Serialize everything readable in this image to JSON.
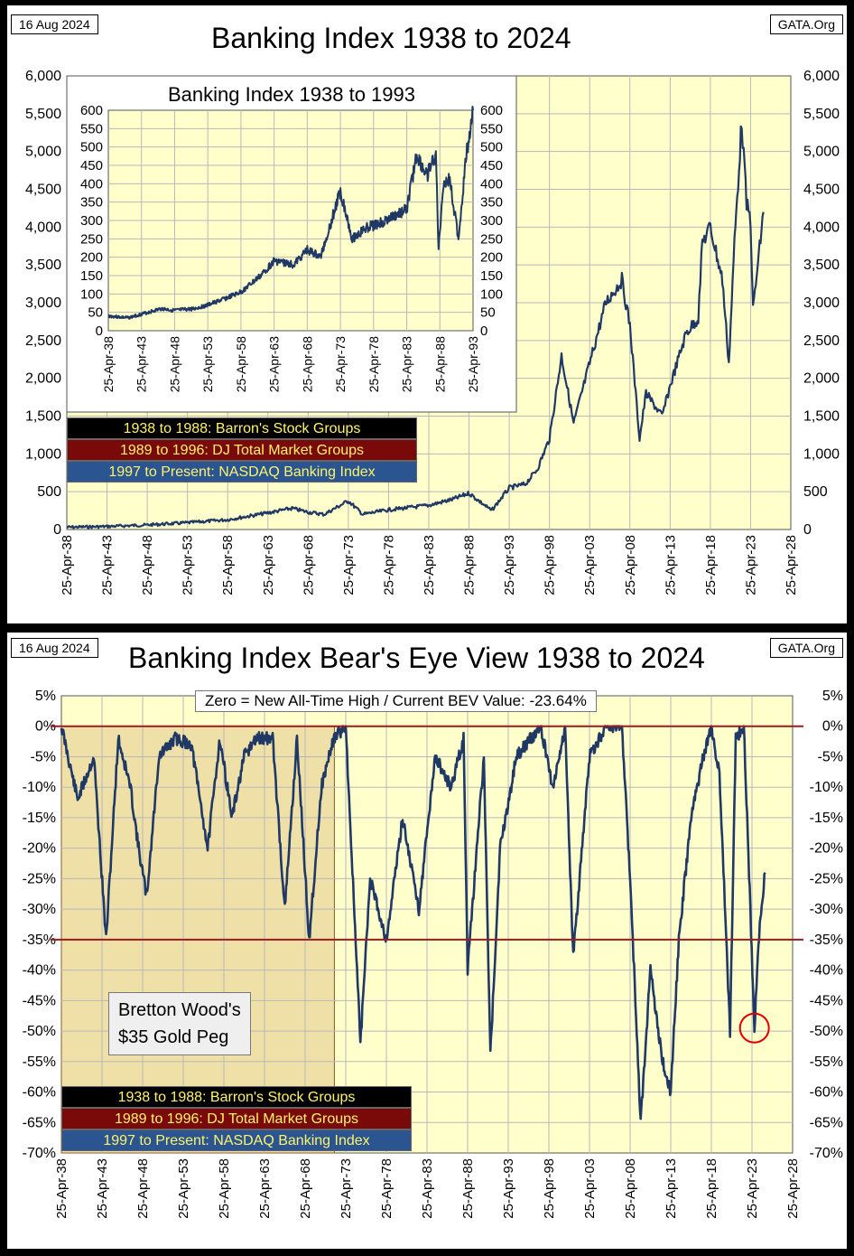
{
  "top": {
    "date": "16 Aug 2024",
    "source": "GATA.Org",
    "title": "Banking Index 1938 to 2024",
    "inset_title": "Banking Index 1938 to 1993",
    "legend": [
      {
        "text": "1938 to 1988: Barron's Stock Groups",
        "bg": "#000000"
      },
      {
        "text": "1989 to 1996: DJ Total Market Groups",
        "bg": "#7a0a0a"
      },
      {
        "text": "1997 to Present: NASDAQ Banking Index",
        "bg": "#2b5591"
      }
    ]
  },
  "bottom": {
    "date": "16 Aug 2024",
    "source": "GATA.Org",
    "title": "Banking Index Bear's Eye View 1938 to 2024",
    "note": "Zero = New All-Time High / Current BEV Value:  -23.64%",
    "bretton_line1": "Bretton Wood's",
    "bretton_line2": "$35 Gold Peg",
    "legend": [
      {
        "text": "1938 to 1988: Barron's Stock Groups",
        "bg": "#000000"
      },
      {
        "text": "1989 to 1996: DJ Total Market Groups",
        "bg": "#7a0a0a"
      },
      {
        "text": "1997 to Present: NASDAQ Banking Index",
        "bg": "#2b5591"
      }
    ]
  },
  "colors": {
    "plot_bg": "#ffffcc",
    "grid": "#b8b8b8",
    "line": "#1f3864",
    "ref_line": "#9b1c1c",
    "circle": "#e00000",
    "shade": "#efe0a8"
  },
  "chart_data": [
    {
      "type": "line",
      "title": "Banking Index 1938 to 2024",
      "x_ticks": [
        "25-Apr-38",
        "25-Apr-43",
        "25-Apr-48",
        "25-Apr-53",
        "25-Apr-58",
        "25-Apr-63",
        "25-Apr-68",
        "25-Apr-73",
        "25-Apr-78",
        "25-Apr-83",
        "25-Apr-88",
        "25-Apr-93",
        "25-Apr-98",
        "25-Apr-03",
        "25-Apr-08",
        "25-Apr-13",
        "25-Apr-18",
        "25-Apr-23",
        "25-Apr-28"
      ],
      "y_ticks": [
        "0",
        "500",
        "1,000",
        "1,500",
        "2,000",
        "2,500",
        "3,000",
        "3,500",
        "4,000",
        "4,500",
        "5,000",
        "5,500",
        "6,000"
      ],
      "xlim": [
        1938,
        2028
      ],
      "ylim": [
        0,
        6000
      ],
      "x": [
        1938,
        1943,
        1948,
        1953,
        1958,
        1963,
        1966,
        1968,
        1970,
        1973,
        1974.8,
        1978,
        1983,
        1986,
        1988,
        1990.8,
        1993,
        1995,
        1996.5,
        1998,
        1999.5,
        2001,
        2003,
        2005,
        2007,
        2008,
        2009.2,
        2010,
        2012,
        2013,
        2015,
        2016.5,
        2017,
        2018,
        2019.5,
        2020.3,
        2021,
        2021.9,
        2022.5,
        2023,
        2023.3,
        2024.6
      ],
      "values": [
        30,
        40,
        60,
        90,
        130,
        220,
        280,
        230,
        200,
        380,
        200,
        260,
        320,
        400,
        480,
        250,
        550,
        600,
        800,
        1200,
        2300,
        1400,
        2200,
        3000,
        3300,
        2700,
        1200,
        1800,
        1500,
        1900,
        2600,
        2800,
        3800,
        4000,
        3300,
        2200,
        3800,
        5400,
        4300,
        4100,
        2900,
        4200
      ]
    },
    {
      "type": "line",
      "title": "Banking Index 1938 to 1993",
      "x_ticks": [
        "25-Apr-38",
        "25-Apr-43",
        "25-Apr-48",
        "25-Apr-53",
        "25-Apr-58",
        "25-Apr-63",
        "25-Apr-68",
        "25-Apr-73",
        "25-Apr-78",
        "25-Apr-83",
        "25-Apr-88",
        "25-Apr-93"
      ],
      "y_ticks": [
        "0",
        "50",
        "100",
        "150",
        "200",
        "250",
        "300",
        "350",
        "400",
        "450",
        "500",
        "550",
        "600"
      ],
      "xlim": [
        1938,
        1993
      ],
      "ylim": [
        0,
        600
      ],
      "x": [
        1938,
        1941,
        1943,
        1946,
        1948,
        1951,
        1953,
        1956,
        1958,
        1961,
        1963,
        1966,
        1968,
        1970,
        1971.5,
        1973,
        1974.8,
        1977,
        1980,
        1983,
        1984.5,
        1986,
        1987.4,
        1987.8,
        1988.5,
        1989.5,
        1990.8,
        1992,
        1993
      ],
      "values": [
        40,
        35,
        45,
        60,
        55,
        60,
        70,
        90,
        105,
        150,
        190,
        180,
        220,
        200,
        290,
        380,
        250,
        280,
        300,
        330,
        480,
        420,
        480,
        220,
        400,
        410,
        250,
        480,
        600
      ]
    },
    {
      "type": "line",
      "title": "Banking Index Bear's Eye View 1938 to 2024",
      "x_ticks": [
        "25-Apr-38",
        "25-Apr-43",
        "25-Apr-48",
        "25-Apr-53",
        "25-Apr-58",
        "25-Apr-63",
        "25-Apr-68",
        "25-Apr-73",
        "25-Apr-78",
        "25-Apr-83",
        "25-Apr-88",
        "25-Apr-93",
        "25-Apr-98",
        "25-Apr-03",
        "25-Apr-08",
        "25-Apr-13",
        "25-Apr-18",
        "25-Apr-23",
        "25-Apr-28"
      ],
      "y_ticks": [
        "5%",
        "0%",
        "-5%",
        "-10%",
        "-15%",
        "-20%",
        "-25%",
        "-30%",
        "-35%",
        "-40%",
        "-45%",
        "-50%",
        "-55%",
        "-60%",
        "-65%",
        "-70%"
      ],
      "xlim": [
        1938,
        2028
      ],
      "ylim": [
        -70,
        5
      ],
      "reference_lines": [
        0,
        -35
      ],
      "x": [
        1938,
        1940,
        1942,
        1943.5,
        1945,
        1946.5,
        1947.5,
        1948.5,
        1950,
        1952,
        1954,
        1956,
        1957.5,
        1959,
        1960.5,
        1962,
        1964,
        1965.5,
        1967,
        1968.5,
        1970,
        1971.5,
        1973,
        1974.8,
        1976,
        1978,
        1980,
        1982,
        1984,
        1986,
        1987.5,
        1988,
        1990,
        1990.8,
        1992,
        1994,
        1997,
        1998.5,
        2000,
        2001,
        2003,
        2005,
        2007,
        2008,
        2009.3,
        2010.5,
        2012,
        2013,
        2014,
        2015.5,
        2017,
        2018,
        2019,
        2020.3,
        2021,
        2022,
        2022.8,
        2023.3,
        2023.8,
        2024.6
      ],
      "values": [
        0,
        -12,
        -5,
        -35,
        -2,
        -10,
        -20,
        -28,
        -5,
        -2,
        -3,
        -20,
        -2,
        -15,
        -5,
        -2,
        -2,
        -30,
        -2,
        -35,
        -10,
        -2,
        0,
        -52,
        -25,
        -35,
        -15,
        -30,
        -5,
        -10,
        -2,
        -40,
        -5,
        -54,
        -20,
        -5,
        0,
        -10,
        0,
        -38,
        -5,
        0,
        0,
        -25,
        -65,
        -40,
        -55,
        -60,
        -35,
        -15,
        -5,
        0,
        -8,
        -50,
        -2,
        0,
        -30,
        -50,
        -35,
        -24
      ]
    }
  ]
}
